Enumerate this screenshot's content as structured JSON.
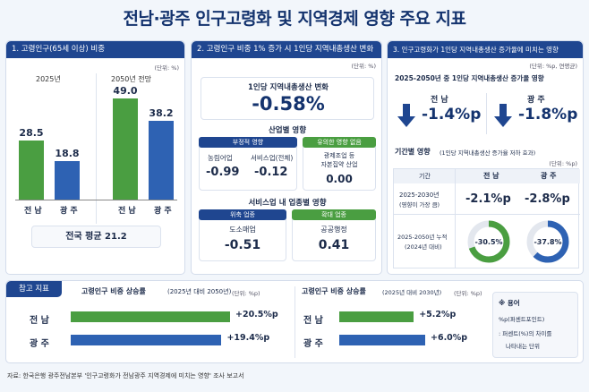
{
  "title": "전남·광주 인구고령화 및 지역경제 영향 주요 지표",
  "panel1": {
    "header": "1. 고령인구(65세 이상) 비중",
    "unit": "(단위: %)",
    "group_2025": "2025년",
    "group_2050": "2050년 전망",
    "avg": "전국 평균 21.2"
  },
  "panel2": {
    "header": "2. 고령인구 비중 1% 증가 시 1인당 지역내총생산 변화",
    "unit": "(단위: %)",
    "main_label": "1인당 지역내총생산 변화",
    "main_value": "-0.58%",
    "ind_title": "산업별 영향",
    "neg_label": "부정적 영향",
    "neg1_name": "농림어업",
    "neg1_val": "-0.99",
    "neg2_name": "서비스업(전체)",
    "neg2_val": "-0.12",
    "none_label": "유의한 영향 없음",
    "none_name1": "광제조업 등",
    "none_name2": "자본집약 산업",
    "none_val": "0.00",
    "svc_title": "서비스업 내 업종별 영향",
    "shrink_label": "위축 업종",
    "shrink_name": "도소매업",
    "shrink_val": "-0.51",
    "expand_label": "확대 업종",
    "expand_name": "공공행정",
    "expand_val": "0.41"
  },
  "panel3": {
    "header": "3. 인구고령화가 1인당 지역내총생산 증가율에 미치는 영향",
    "unit": "(단위: %p, 연평균)",
    "sub": "2025-2050년 중 1인당 지역내총생산 증가율 영향",
    "jn_name": "전 남",
    "jn_val": "-1.4%p",
    "gj_name": "광 주",
    "gj_val": "-1.8%p",
    "period_title": "기간별 영향",
    "period_note": "(1인당 지역내총생산 증가율 저하 효과)",
    "period_unit": "(단위: %p)",
    "col_period": "기간",
    "col_jn": "전 남",
    "col_gj": "광 주",
    "row1_a": "2025-2030년",
    "row1_b": "(영향이 가장 큼)",
    "row1_jn": "-2.1%p",
    "row1_gj": "-2.8%p",
    "row2_a": "2025-2050년 누적",
    "row2_b": "(2024년 대비)",
    "row2_jn": "-30.5%",
    "row2_gj": "-37.8%"
  },
  "ref": {
    "tag": "참고 지표",
    "left_title": "고령인구 비중 상승률",
    "left_note": "(2025년 대비 2050년)",
    "left_unit": "(단위: %p)",
    "right_title": "고령인구 비중 상승률",
    "right_note": "(2025년 대비 2030년)",
    "right_unit": "(단위: %p)",
    "jn_label": "전 남",
    "gj_label": "광 주",
    "left_jn_text": "+20.5%p",
    "left_gj_text": "+19.4%p",
    "right_jn_text": "+5.2%p",
    "right_gj_text": "+6.0%p",
    "note_title": "※ 용어",
    "note_1": "%p(퍼센트포인트)",
    "note_2": ": 퍼센트(%)의 차이를",
    "note_3": "나타내는 단위"
  },
  "source": "자료: 한국은행 광주전남본부 '인구고령화가 전남광주 지역경제에 미치는 영향' 조사 보고서",
  "colors": {
    "jeonnam": "#4a9e41",
    "gwangju": "#2e62b3",
    "navy": "#1f4690"
  },
  "chart_data": [
    {
      "type": "bar",
      "title": "고령인구(65세 이상) 비중",
      "unit": "%",
      "groups": [
        "2025년",
        "2050년 전망"
      ],
      "categories": [
        "전 남",
        "광 주"
      ],
      "series": [
        {
          "group": "2025년",
          "values": [
            28.5,
            18.8
          ]
        },
        {
          "group": "2050년 전망",
          "values": [
            49.0,
            38.2
          ]
        }
      ],
      "ylim": [
        0,
        55
      ],
      "reference": {
        "label": "전국 평균",
        "value": 21.2
      }
    },
    {
      "type": "bar",
      "title": "고령인구 비중 상승률 (2025년 대비 2050년)",
      "orientation": "horizontal",
      "unit": "%p",
      "categories": [
        "전 남",
        "광 주"
      ],
      "values": [
        20.5,
        19.4
      ]
    },
    {
      "type": "bar",
      "title": "고령인구 비중 상승률 (2025년 대비 2030년)",
      "orientation": "horizontal",
      "unit": "%p",
      "categories": [
        "전 남",
        "광 주"
      ],
      "values": [
        5.2,
        6.0
      ]
    },
    {
      "type": "pie",
      "title": "2025-2050년 누적 (2024년 대비)",
      "unit": "%",
      "categories": [
        "전 남",
        "광 주"
      ],
      "values": [
        -30.5,
        -37.8
      ]
    }
  ]
}
